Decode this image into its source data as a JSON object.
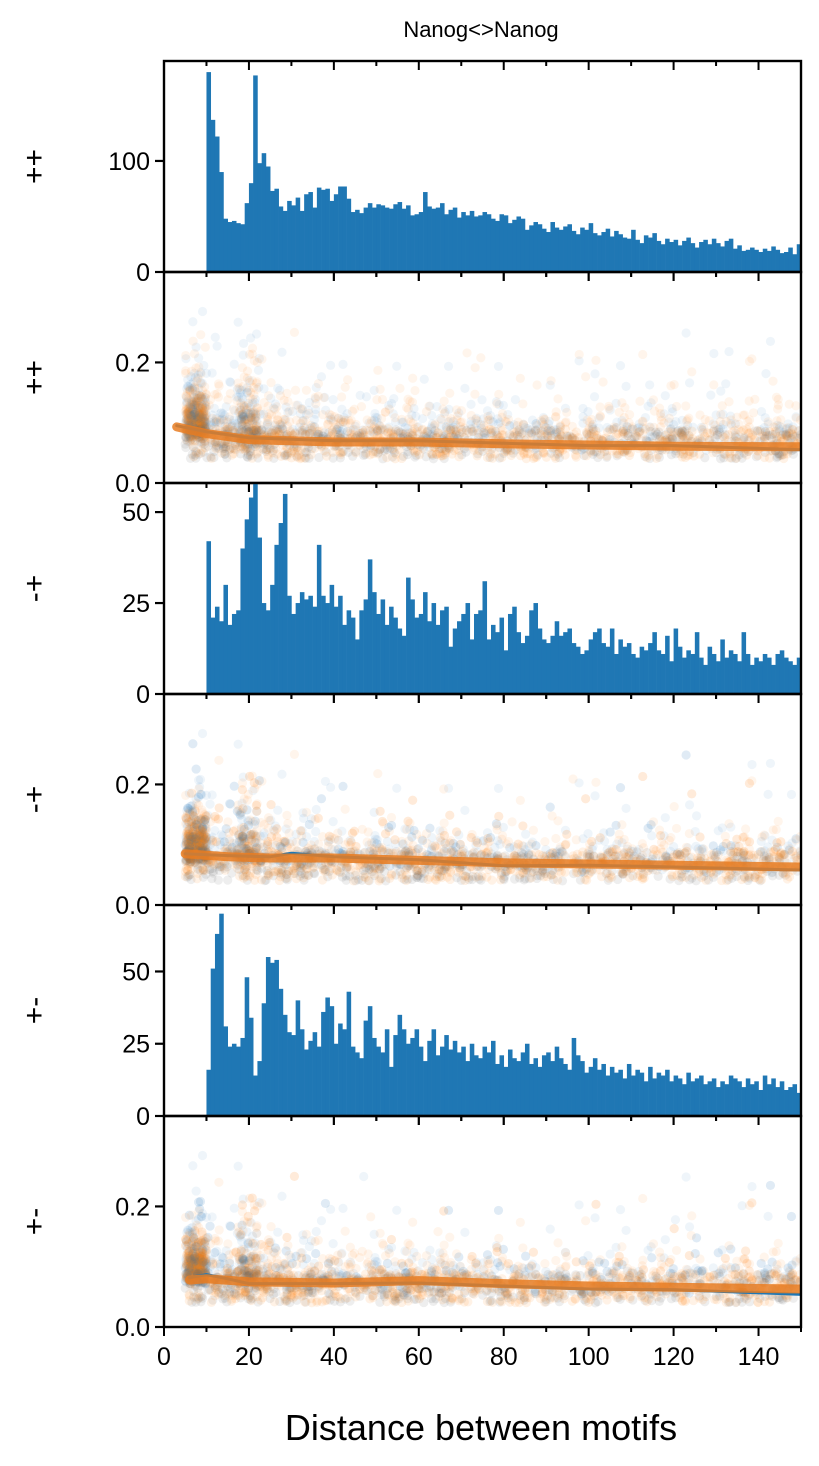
{
  "figure": {
    "title": "Nanog<>Nanog",
    "xlabel": "Distance between motifs",
    "xlim": [
      0,
      150
    ],
    "xticks": [
      0,
      20,
      40,
      60,
      80,
      100,
      120,
      140
    ],
    "colors": {
      "blue": "#1f77b4",
      "orange": "#ff7f0e",
      "axis": "#000000"
    }
  },
  "chart_data": [
    {
      "type": "bar",
      "ylabel": "++",
      "ylim": [
        0,
        190
      ],
      "yticks": [
        0,
        100
      ],
      "x_start": 10,
      "bin_width": 1,
      "values": [
        180,
        137,
        122,
        90,
        48,
        45,
        46,
        44,
        43,
        62,
        80,
        177,
        98,
        107,
        95,
        73,
        75,
        59,
        55,
        64,
        60,
        67,
        55,
        70,
        72,
        58,
        76,
        74,
        75,
        64,
        70,
        77,
        77,
        66,
        54,
        56,
        53,
        58,
        62,
        58,
        61,
        60,
        58,
        57,
        61,
        63,
        57,
        60,
        51,
        52,
        54,
        72,
        59,
        57,
        58,
        62,
        52,
        56,
        58,
        49,
        54,
        51,
        55,
        50,
        51,
        54,
        52,
        48,
        46,
        52,
        51,
        44,
        47,
        50,
        48,
        38,
        42,
        45,
        43,
        39,
        36,
        45,
        40,
        38,
        41,
        43,
        37,
        34,
        40,
        38,
        44,
        35,
        33,
        36,
        39,
        32,
        37,
        34,
        31,
        30,
        38,
        29,
        26,
        33,
        31,
        35,
        28,
        25,
        30,
        27,
        29,
        24,
        28,
        31,
        26,
        22,
        27,
        29,
        25,
        30,
        26,
        23,
        28,
        30,
        21,
        24,
        19,
        20,
        22,
        20,
        18,
        21,
        19,
        23,
        20,
        17,
        18,
        22,
        16,
        25,
        18,
        46
      ]
    },
    {
      "type": "scatter",
      "ylabel": "++",
      "ylim": [
        0.0,
        0.35
      ],
      "yticks": [
        0.0,
        0.2
      ],
      "series": [
        {
          "color": "blue",
          "trend": [
            [
              3,
              0.095
            ],
            [
              10,
              0.085
            ],
            [
              20,
              0.075
            ],
            [
              40,
              0.07
            ],
            [
              60,
              0.07
            ],
            [
              80,
              0.066
            ],
            [
              100,
              0.062
            ],
            [
              120,
              0.062
            ],
            [
              150,
              0.055
            ]
          ]
        },
        {
          "color": "orange",
          "trend": [
            [
              3,
              0.093
            ],
            [
              10,
              0.082
            ],
            [
              20,
              0.072
            ],
            [
              40,
              0.068
            ],
            [
              60,
              0.068
            ],
            [
              80,
              0.065
            ],
            [
              100,
              0.063
            ],
            [
              120,
              0.061
            ],
            [
              150,
              0.06
            ]
          ]
        }
      ]
    },
    {
      "type": "bar",
      "ylabel": "-+",
      "ylim": [
        0,
        58
      ],
      "yticks": [
        0,
        25,
        50
      ],
      "x_start": 10,
      "bin_width": 1,
      "values": [
        42,
        21,
        24,
        20,
        30,
        19,
        22,
        23,
        40,
        48,
        54,
        58,
        43,
        25,
        23,
        30,
        41,
        47,
        55,
        27,
        22,
        25,
        28,
        26,
        27,
        24,
        41,
        27,
        25,
        30,
        24,
        27,
        19,
        23,
        21,
        15,
        23,
        26,
        37,
        28,
        22,
        26,
        19,
        24,
        21,
        18,
        16,
        32,
        26,
        21,
        22,
        28,
        20,
        25,
        19,
        23,
        24,
        13,
        18,
        20,
        22,
        25,
        15,
        22,
        23,
        31,
        15,
        19,
        17,
        21,
        12,
        22,
        24,
        17,
        14,
        16,
        23,
        25,
        18,
        15,
        14,
        16,
        20,
        16,
        17,
        18,
        14,
        13,
        11,
        12,
        15,
        17,
        18,
        14,
        13,
        18,
        11,
        15,
        13,
        14,
        11,
        10,
        13,
        12,
        14,
        17,
        12,
        11,
        16,
        9,
        18,
        13,
        10,
        12,
        11,
        17,
        10,
        8,
        13,
        11,
        9,
        15,
        10,
        12,
        11,
        9,
        17,
        11,
        8,
        10,
        9,
        11,
        10,
        8,
        11,
        12,
        10,
        9,
        8,
        10,
        9,
        12
      ]
    },
    {
      "type": "scatter",
      "ylabel": "-+",
      "ylim": [
        0.0,
        0.35
      ],
      "yticks": [
        0.0,
        0.2
      ],
      "series": [
        {
          "color": "blue",
          "trend": [
            [
              5,
              0.085
            ],
            [
              15,
              0.082
            ],
            [
              25,
              0.08
            ],
            [
              30,
              0.086
            ],
            [
              40,
              0.08
            ],
            [
              60,
              0.075
            ],
            [
              80,
              0.065
            ],
            [
              100,
              0.066
            ],
            [
              120,
              0.063
            ],
            [
              150,
              0.058
            ]
          ]
        },
        {
          "color": "orange",
          "trend": [
            [
              5,
              0.085
            ],
            [
              15,
              0.08
            ],
            [
              25,
              0.078
            ],
            [
              40,
              0.078
            ],
            [
              60,
              0.074
            ],
            [
              80,
              0.07
            ],
            [
              100,
              0.068
            ],
            [
              120,
              0.066
            ],
            [
              150,
              0.063
            ]
          ]
        }
      ]
    },
    {
      "type": "bar",
      "ylabel": "+-",
      "ylim": [
        0,
        73
      ],
      "yticks": [
        0,
        25,
        50
      ],
      "x_start": 10,
      "bin_width": 1,
      "values": [
        16,
        51,
        63,
        70,
        31,
        24,
        25,
        24,
        27,
        48,
        34,
        14,
        19,
        39,
        55,
        53,
        54,
        44,
        35,
        29,
        28,
        40,
        30,
        23,
        26,
        29,
        24,
        36,
        41,
        38,
        25,
        32,
        30,
        43,
        24,
        22,
        20,
        33,
        38,
        27,
        24,
        22,
        30,
        17,
        28,
        35,
        30,
        25,
        27,
        30,
        24,
        19,
        26,
        30,
        21,
        24,
        28,
        23,
        26,
        22,
        24,
        19,
        25,
        21,
        20,
        24,
        22,
        26,
        18,
        21,
        17,
        23,
        20,
        19,
        22,
        25,
        18,
        20,
        17,
        21,
        22,
        19,
        24,
        20,
        18,
        16,
        27,
        21,
        19,
        15,
        17,
        20,
        16,
        18,
        14,
        17,
        15,
        16,
        13,
        18,
        14,
        16,
        15,
        12,
        17,
        13,
        15,
        14,
        16,
        12,
        14,
        13,
        11,
        15,
        12,
        13,
        14,
        11,
        12,
        13,
        10,
        12,
        11,
        14,
        13,
        12,
        10,
        13,
        11,
        12,
        9,
        14,
        11,
        13,
        10,
        12,
        9,
        10,
        11,
        8,
        12,
        10
      ]
    },
    {
      "type": "scatter",
      "ylabel": "+-",
      "ylim": [
        0.0,
        0.35
      ],
      "yticks": [
        0.0,
        0.2
      ],
      "series": [
        {
          "color": "blue",
          "trend": [
            [
              6,
              0.082
            ],
            [
              10,
              0.087
            ],
            [
              15,
              0.08
            ],
            [
              20,
              0.072
            ],
            [
              40,
              0.072
            ],
            [
              60,
              0.073
            ],
            [
              80,
              0.068
            ],
            [
              100,
              0.063
            ],
            [
              120,
              0.062
            ],
            [
              150,
              0.054
            ]
          ]
        },
        {
          "color": "orange",
          "trend": [
            [
              6,
              0.078
            ],
            [
              10,
              0.08
            ],
            [
              20,
              0.075
            ],
            [
              40,
              0.073
            ],
            [
              60,
              0.077
            ],
            [
              80,
              0.072
            ],
            [
              100,
              0.068
            ],
            [
              120,
              0.066
            ],
            [
              150,
              0.063
            ]
          ]
        }
      ]
    }
  ]
}
